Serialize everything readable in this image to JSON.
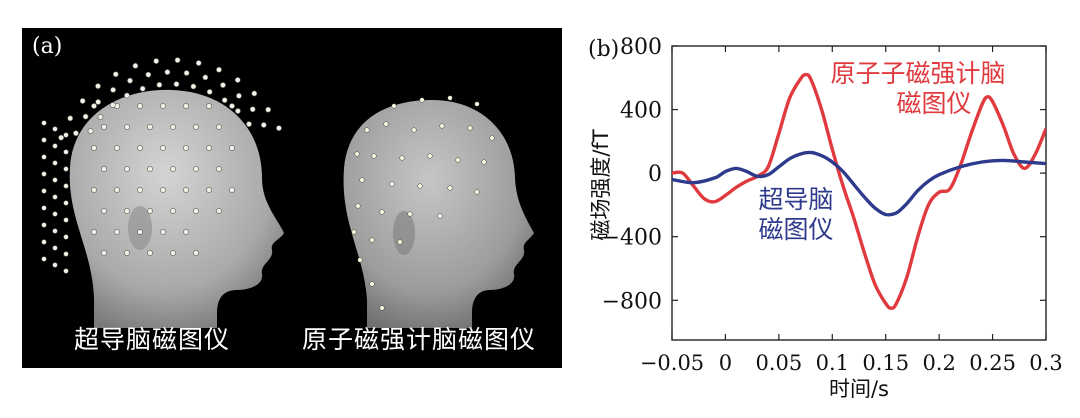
{
  "panel_a": {
    "label": "(a)",
    "caption_left": "超导脑磁图仪",
    "caption_right": "原子磁强计脑磁图仪"
  },
  "chart_data": {
    "type": "line",
    "panel_label": "(b)",
    "title": "",
    "xlabel": "时间/s",
    "ylabel": "磁场强度/fT",
    "xlim": [
      -0.05,
      0.3
    ],
    "ylim": [
      -1050,
      800
    ],
    "xticks": [
      -0.05,
      0,
      0.05,
      0.1,
      0.15,
      0.2,
      0.25,
      0.3
    ],
    "xtick_labels": [
      "−0.05",
      "0",
      "0.05",
      "0.1",
      "0.15",
      "0.2",
      "0.25",
      "0.3"
    ],
    "yticks": [
      -800,
      -400,
      0,
      400,
      800
    ],
    "ytick_labels": [
      "−800",
      "−400",
      "0",
      "400",
      "800"
    ],
    "grid": false,
    "legend": "inline annotations",
    "series": [
      {
        "name": "原子磁强计脑磁图仪",
        "label_lines": [
          "原子子磁强计脑",
          "磁图仪"
        ],
        "color": "#e03a3e",
        "x": [
          -0.05,
          -0.04,
          -0.03,
          -0.02,
          -0.01,
          0.0,
          0.01,
          0.02,
          0.03,
          0.04,
          0.05,
          0.06,
          0.07,
          0.075,
          0.08,
          0.09,
          0.1,
          0.11,
          0.12,
          0.13,
          0.14,
          0.15,
          0.155,
          0.16,
          0.17,
          0.18,
          0.19,
          0.2,
          0.21,
          0.22,
          0.23,
          0.24,
          0.245,
          0.25,
          0.26,
          0.27,
          0.28,
          0.29,
          0.3
        ],
        "y": [
          0,
          0,
          -80,
          -160,
          -180,
          -140,
          -90,
          -50,
          -20,
          40,
          250,
          470,
          590,
          620,
          590,
          400,
          150,
          -80,
          -280,
          -500,
          -700,
          -820,
          -850,
          -820,
          -650,
          -400,
          -200,
          -120,
          -100,
          50,
          250,
          430,
          480,
          450,
          300,
          120,
          30,
          120,
          280
        ]
      },
      {
        "name": "超导脑磁图仪",
        "label_lines": [
          "超导脑",
          "磁图仪"
        ],
        "color": "#2e3a8c",
        "x": [
          -0.05,
          -0.03,
          -0.01,
          0.0,
          0.01,
          0.02,
          0.03,
          0.04,
          0.05,
          0.06,
          0.07,
          0.08,
          0.09,
          0.1,
          0.11,
          0.12,
          0.13,
          0.14,
          0.15,
          0.16,
          0.17,
          0.18,
          0.19,
          0.2,
          0.22,
          0.24,
          0.26,
          0.28,
          0.3
        ],
        "y": [
          -40,
          -60,
          -30,
          10,
          30,
          10,
          -20,
          -10,
          40,
          90,
          120,
          130,
          110,
          70,
          10,
          -70,
          -150,
          -220,
          -260,
          -250,
          -190,
          -110,
          -50,
          -10,
          40,
          70,
          80,
          70,
          60
        ]
      }
    ]
  }
}
